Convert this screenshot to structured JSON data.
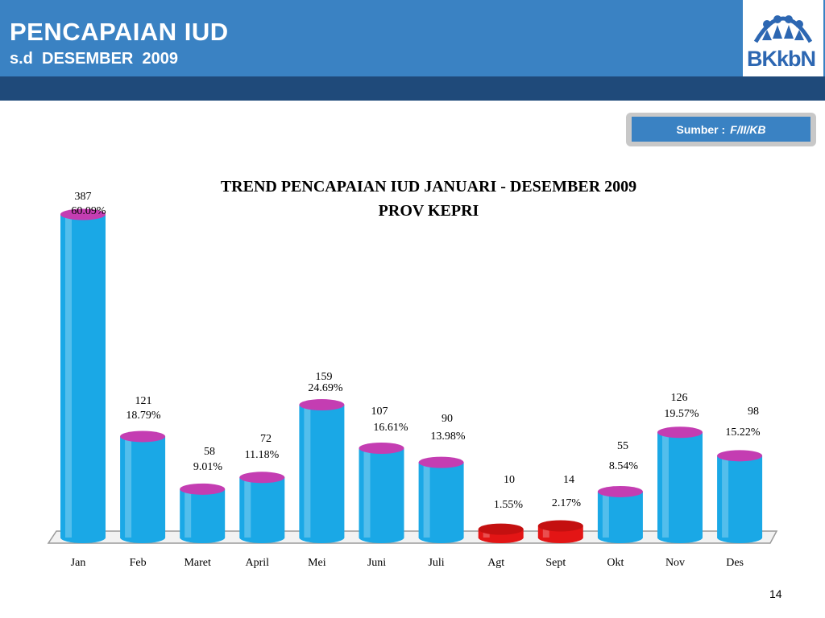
{
  "header": {
    "title": "PENCAPAIAN IUD",
    "subtitle": "s.d  DESEMBER  2009",
    "logo_text": "BKkbN"
  },
  "source": {
    "label": "Sumber :",
    "value": "F/II/KB"
  },
  "page_number": "14",
  "colors": {
    "header_blue": "#3a82c3",
    "header_dark": "#1f4a7a",
    "bar_blue": "#1aa8e6",
    "bar_red": "#e31515",
    "bar_cap_magenta": "#c43db2"
  },
  "chart_data": {
    "type": "bar",
    "title": "TREND PENCAPAIAN IUD JANUARI -  DESEMBER 2009",
    "subtitle": "PROV KEPRI",
    "categories": [
      "Jan",
      "Feb",
      "Maret",
      "April",
      "Mei",
      "Juni",
      "Juli",
      "Agt",
      "Sept",
      "Okt",
      "Nov",
      "Des"
    ],
    "values": [
      387,
      121,
      58,
      72,
      159,
      107,
      90,
      10,
      14,
      55,
      126,
      98
    ],
    "percent_labels": [
      "60.09%",
      "18.79%",
      "9.01%",
      "11.18%",
      "24.69%",
      "16.61%",
      "13.98%",
      "1.55%",
      "2.17%",
      "8.54%",
      "19.57%",
      "15.22%"
    ],
    "highlighted": [
      "Agt",
      "Sept"
    ],
    "ylim": [
      0,
      400
    ],
    "grid": false,
    "legend": "none"
  }
}
